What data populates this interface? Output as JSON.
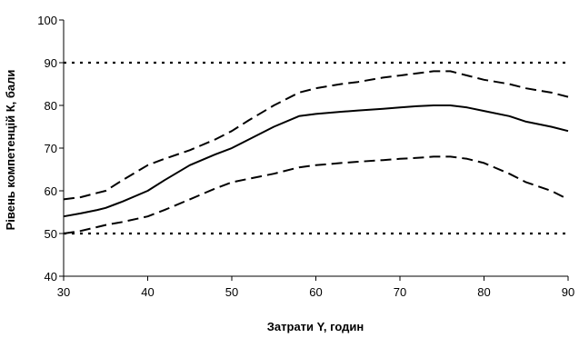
{
  "chart_data": {
    "type": "line",
    "title": "",
    "xlabel": "Затрати Y, годин",
    "ylabel": "Рівень компетенцій К, бали",
    "xlim": [
      30,
      90
    ],
    "ylim": [
      40,
      100
    ],
    "xticks": [
      30,
      40,
      50,
      60,
      70,
      80,
      90
    ],
    "yticks": [
      40,
      50,
      60,
      70,
      80,
      90,
      100
    ],
    "grid": false,
    "legend": "none",
    "reference_lines": [
      {
        "y": 90,
        "style": "dotted"
      },
      {
        "y": 50,
        "style": "dotted"
      }
    ],
    "series": [
      {
        "style": "dashed",
        "x": [
          30,
          32,
          34,
          35,
          37,
          40,
          42,
          45,
          48,
          50,
          52,
          55,
          58,
          60,
          63,
          65,
          68,
          70,
          72,
          74,
          76,
          78,
          80,
          83,
          85,
          88,
          90
        ],
        "y": [
          58,
          58.5,
          59.5,
          60,
          62.5,
          66,
          67.5,
          69.5,
          72,
          74,
          76.5,
          80,
          83,
          84,
          85,
          85.5,
          86.5,
          87,
          87.5,
          88,
          88,
          87,
          86,
          85,
          84,
          83,
          82
        ]
      },
      {
        "style": "solid",
        "x": [
          30,
          32,
          34,
          35,
          37,
          40,
          42,
          45,
          48,
          50,
          52,
          55,
          58,
          60,
          63,
          65,
          68,
          70,
          72,
          74,
          76,
          78,
          80,
          83,
          85,
          88,
          90
        ],
        "y": [
          54,
          54.7,
          55.5,
          56,
          57.5,
          60,
          62.5,
          66,
          68.5,
          70,
          72,
          75,
          77.5,
          78,
          78.5,
          78.8,
          79.2,
          79.5,
          79.8,
          80,
          80,
          79.5,
          78.7,
          77.5,
          76.2,
          75,
          74
        ]
      },
      {
        "style": "dashed",
        "x": [
          30,
          32,
          34,
          35,
          37,
          40,
          42,
          45,
          48,
          50,
          52,
          55,
          58,
          60,
          63,
          65,
          68,
          70,
          72,
          74,
          76,
          78,
          80,
          83,
          85,
          88,
          90
        ],
        "y": [
          50,
          50.6,
          51.5,
          52,
          52.7,
          54,
          55.5,
          58,
          60.5,
          62,
          62.8,
          64,
          65.5,
          66,
          66.5,
          66.8,
          67.2,
          67.5,
          67.7,
          68,
          68,
          67.5,
          66.5,
          64,
          62,
          60,
          58
        ]
      }
    ]
  }
}
